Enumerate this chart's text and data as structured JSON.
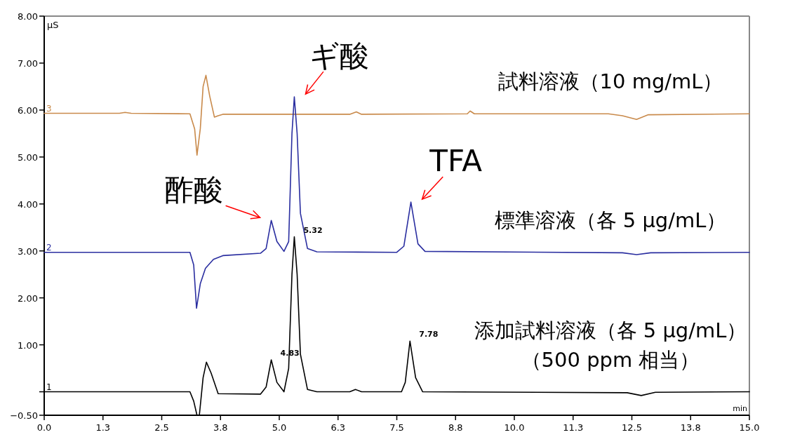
{
  "chart_data": {
    "type": "line",
    "xlabel": "min",
    "ylabel": "μS",
    "xlim": [
      0,
      15
    ],
    "xticks": [
      {
        "value": 0,
        "label": "0.0"
      },
      {
        "value": 1.25,
        "label": "1.3"
      },
      {
        "value": 2.5,
        "label": "2.5"
      },
      {
        "value": 3.75,
        "label": "3.8"
      },
      {
        "value": 5,
        "label": "5.0"
      },
      {
        "value": 6.25,
        "label": "6.3"
      },
      {
        "value": 7.5,
        "label": "7.5"
      },
      {
        "value": 8.75,
        "label": "8.8"
      },
      {
        "value": 10,
        "label": "10.0"
      },
      {
        "value": 11.25,
        "label": "11.3"
      },
      {
        "value": 12.5,
        "label": "12.5"
      },
      {
        "value": 13.75,
        "label": "13.8"
      },
      {
        "value": 15,
        "label": "15.0"
      }
    ],
    "ylim": [
      -0.5,
      8
    ],
    "yticks": [
      {
        "value": -0.5,
        "label": "−0.50"
      },
      {
        "value": 0,
        "label": null
      },
      {
        "value": 1,
        "label": "1.00"
      },
      {
        "value": 2,
        "label": "2.00"
      },
      {
        "value": 3,
        "label": "3.00"
      },
      {
        "value": 4,
        "label": "4.00"
      },
      {
        "value": 5,
        "label": "5.00"
      },
      {
        "value": 6,
        "label": "6.00"
      },
      {
        "value": 7,
        "label": "7.00"
      },
      {
        "value": 8,
        "label": "8.00"
      }
    ],
    "grid": false,
    "series": [
      {
        "name": "試料溶液（10 mg/mL）",
        "color": "#c98a4b",
        "x": [
          0,
          1.6,
          1.72,
          1.85,
          3.1,
          3.2,
          3.25,
          3.32,
          3.38,
          3.44,
          3.52,
          3.62,
          3.7,
          3.8,
          5.0,
          6.5,
          6.64,
          6.75,
          9.0,
          9.06,
          9.15,
          12.0,
          12.3,
          12.6,
          12.85,
          15.0
        ],
        "values": [
          5.93,
          5.93,
          5.95,
          5.93,
          5.92,
          5.6,
          5.04,
          5.6,
          6.5,
          6.74,
          6.3,
          5.85,
          5.88,
          5.91,
          5.91,
          5.91,
          5.96,
          5.91,
          5.92,
          5.98,
          5.92,
          5.92,
          5.88,
          5.8,
          5.9,
          5.92
        ]
      },
      {
        "name": "標準溶液（各 5 μg/mL）",
        "color": "#2a2ea0",
        "x": [
          0,
          3.1,
          3.18,
          3.24,
          3.32,
          3.43,
          3.6,
          3.8,
          4.6,
          4.72,
          4.83,
          4.95,
          5.1,
          5.2,
          5.27,
          5.32,
          5.38,
          5.45,
          5.6,
          5.8,
          7.5,
          7.65,
          7.8,
          7.95,
          8.1,
          12.3,
          12.6,
          12.9,
          15.0
        ],
        "values": [
          2.97,
          2.97,
          2.7,
          1.78,
          2.3,
          2.63,
          2.82,
          2.9,
          2.95,
          3.05,
          3.65,
          3.2,
          2.99,
          3.2,
          5.5,
          6.28,
          5.5,
          3.8,
          3.05,
          2.98,
          2.97,
          3.1,
          4.04,
          3.15,
          2.99,
          2.96,
          2.92,
          2.96,
          2.97
        ]
      },
      {
        "name": "添加試料溶液（各 5 μg/mL）（500 ppm 相当）",
        "color": "#000000",
        "x": [
          0,
          3.1,
          3.18,
          3.25,
          3.3,
          3.38,
          3.45,
          3.55,
          3.7,
          4.6,
          4.72,
          4.83,
          4.95,
          5.1,
          5.2,
          5.27,
          5.32,
          5.38,
          5.45,
          5.6,
          5.8,
          6.5,
          6.62,
          6.75,
          7.6,
          7.68,
          7.78,
          7.9,
          8.05,
          12.4,
          12.7,
          13.0,
          15.0
        ],
        "values": [
          0,
          0,
          -0.2,
          -0.5,
          -0.5,
          0.3,
          0.63,
          0.4,
          -0.04,
          -0.05,
          0.1,
          0.68,
          0.2,
          0.0,
          0.5,
          2.5,
          3.3,
          2.5,
          0.8,
          0.05,
          0.0,
          0.0,
          0.05,
          0.0,
          0.0,
          0.2,
          1.08,
          0.3,
          0.0,
          -0.02,
          -0.08,
          -0.01,
          0
        ]
      }
    ],
    "annotations": [
      {
        "text": "3",
        "x": 0,
        "y": 5.93
      },
      {
        "text": "2",
        "x": 0,
        "y": 2.97
      },
      {
        "text": "1",
        "x": 0,
        "y": 0
      },
      {
        "text": "4.83",
        "x": 4.83,
        "y": 0.68
      },
      {
        "text": "5.32",
        "x": 5.32,
        "y": 3.3
      },
      {
        "text": "7.78",
        "x": 7.78,
        "y": 1.08
      },
      {
        "text": "酢酸",
        "x": 4.83,
        "y": 3.65
      },
      {
        "text": "ギ酸",
        "x": 5.32,
        "y": 6.28
      },
      {
        "text": "TFA",
        "x": 7.8,
        "y": 4.04
      }
    ]
  }
}
